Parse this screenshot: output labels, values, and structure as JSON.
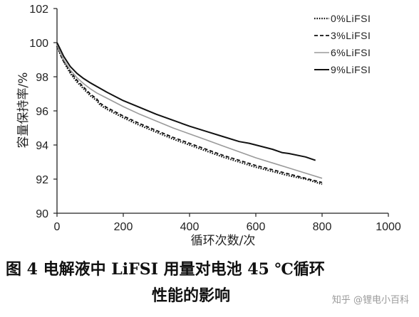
{
  "figure_caption": {
    "line1": "图 4    电解液中 LiFSI 用量对电池 45 ℃循环",
    "line2": "性能的影响"
  },
  "watermark": "知乎 @锂电小百科",
  "chart_data": {
    "type": "line",
    "title": "",
    "xlabel": "循环次数/次",
    "ylabel": "容量保持率/%",
    "xlim": [
      0,
      1000
    ],
    "ylim": [
      90,
      102
    ],
    "x_ticks": [
      "0",
      "200",
      "400",
      "600",
      "800",
      "1000"
    ],
    "y_ticks": [
      "90",
      "92",
      "94",
      "96",
      "98",
      "100",
      "102"
    ],
    "grid": false,
    "legend_position": "top-right",
    "series": [
      {
        "name": "0%LiFSI",
        "style": "dotted",
        "color": "#111111",
        "x": [
          0,
          10,
          20,
          40,
          60,
          80,
          100,
          120,
          130,
          150,
          200,
          250,
          300,
          350,
          400,
          450,
          500,
          550,
          600,
          650,
          700,
          750,
          800
        ],
        "y": [
          99.8,
          99.3,
          98.9,
          98.2,
          97.7,
          97.3,
          96.9,
          96.6,
          96.35,
          96.1,
          95.6,
          95.15,
          94.75,
          94.35,
          94.0,
          93.65,
          93.3,
          93.0,
          92.7,
          92.45,
          92.2,
          92.0,
          91.7
        ]
      },
      {
        "name": "3%LiFSI",
        "style": "dashed",
        "color": "#111111",
        "x": [
          0,
          10,
          20,
          40,
          60,
          80,
          100,
          120,
          130,
          150,
          200,
          250,
          300,
          350,
          400,
          450,
          500,
          550,
          600,
          650,
          700,
          750,
          800
        ],
        "y": [
          99.9,
          99.3,
          98.9,
          98.3,
          97.8,
          97.4,
          97.0,
          96.7,
          96.45,
          96.2,
          95.7,
          95.25,
          94.85,
          94.45,
          94.1,
          93.75,
          93.4,
          93.1,
          92.8,
          92.55,
          92.3,
          92.05,
          91.8
        ]
      },
      {
        "name": "6%LiFSI",
        "style": "solid",
        "color": "#9a9a9a",
        "x": [
          0,
          10,
          20,
          40,
          60,
          80,
          100,
          120,
          150,
          200,
          250,
          300,
          350,
          400,
          450,
          500,
          550,
          600,
          650,
          700,
          750,
          800
        ],
        "y": [
          99.9,
          99.4,
          99.0,
          98.4,
          97.95,
          97.6,
          97.3,
          97.05,
          96.75,
          96.25,
          95.8,
          95.4,
          95.0,
          94.65,
          94.3,
          93.95,
          93.6,
          93.25,
          92.95,
          92.65,
          92.35,
          92.05
        ]
      },
      {
        "name": "9%LiFSI",
        "style": "solid",
        "color": "#111111",
        "x": [
          0,
          10,
          20,
          40,
          60,
          80,
          100,
          150,
          200,
          250,
          300,
          350,
          400,
          450,
          500,
          550,
          580,
          600,
          650,
          680,
          700,
          750,
          780
        ],
        "y": [
          100.0,
          99.6,
          99.2,
          98.6,
          98.2,
          97.9,
          97.65,
          97.1,
          96.6,
          96.2,
          95.8,
          95.45,
          95.1,
          94.8,
          94.5,
          94.2,
          94.1,
          94.0,
          93.75,
          93.55,
          93.5,
          93.3,
          93.1
        ]
      }
    ]
  }
}
